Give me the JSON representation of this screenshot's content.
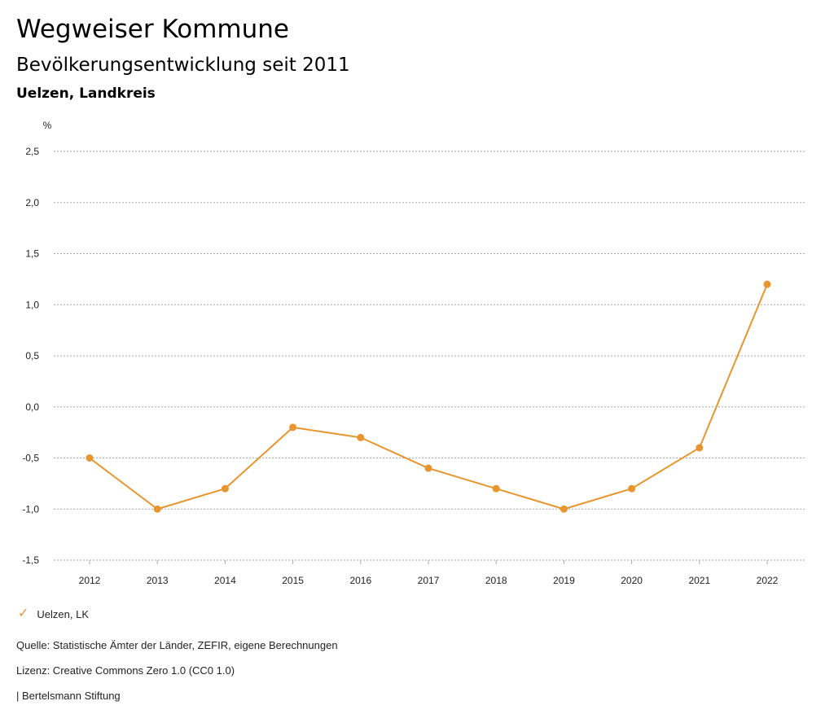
{
  "header": {
    "title": "Wegweiser Kommune",
    "subtitle": "Bevölkerungsentwicklung seit 2011",
    "region": "Uelzen, Landkreis"
  },
  "legend": {
    "icon": "checkmark-icon",
    "label": "Uelzen, LK"
  },
  "footer": {
    "source": "Quelle: Statistische Ämter der Länder, ZEFIR, eigene Berechnungen",
    "license": "Lizenz: Creative Commons Zero 1.0 (CC0 1.0)",
    "publisher": "| Bertelsmann Stiftung"
  },
  "colors": {
    "series": "#e8952e",
    "grid": "#aaaaaa"
  },
  "chart_data": {
    "type": "line",
    "ylabel": "%",
    "xlabel": "",
    "ylim": [
      -1.5,
      2.5
    ],
    "yticks": [
      -1.5,
      -1.0,
      -0.5,
      0.0,
      0.5,
      1.0,
      1.5,
      2.0,
      2.5
    ],
    "ytick_labels": [
      "-1,5",
      "-1,0",
      "-0,5",
      "0,0",
      "0,5",
      "1,0",
      "1,5",
      "2,0",
      "2,5"
    ],
    "categories": [
      "2012",
      "2013",
      "2014",
      "2015",
      "2016",
      "2017",
      "2018",
      "2019",
      "2020",
      "2021",
      "2022"
    ],
    "series": [
      {
        "name": "Uelzen, LK",
        "values": [
          -0.5,
          -1.0,
          -0.8,
          -0.2,
          -0.3,
          -0.6,
          -0.8,
          -1.0,
          -0.8,
          -0.4,
          1.2
        ]
      }
    ],
    "grid": true,
    "legend_position": "bottom-left"
  }
}
